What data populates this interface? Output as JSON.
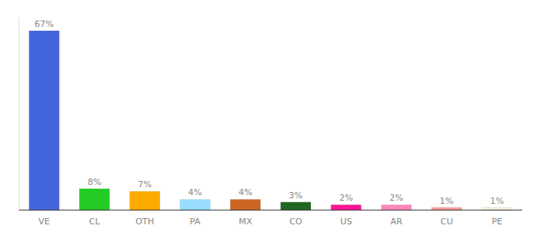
{
  "chart_data": {
    "type": "bar",
    "categories": [
      "VE",
      "CL",
      "OTH",
      "PA",
      "MX",
      "CO",
      "US",
      "AR",
      "CU",
      "PE"
    ],
    "values": [
      67,
      8,
      7,
      4,
      4,
      3,
      2,
      2,
      1,
      1
    ],
    "value_labels": [
      "67%",
      "8%",
      "7%",
      "4%",
      "4%",
      "3%",
      "2%",
      "2%",
      "1%",
      "1%"
    ],
    "data_labels": true,
    "colors": [
      "#4466DD",
      "#22CC22",
      "#FFAA00",
      "#99DDFF",
      "#CC6622",
      "#226622",
      "#FF1493",
      "#FF88BB",
      "#FF9999",
      "#F5F0DC"
    ],
    "ylim": [
      0,
      72
    ],
    "tick_labels": "x",
    "grid": false
  }
}
